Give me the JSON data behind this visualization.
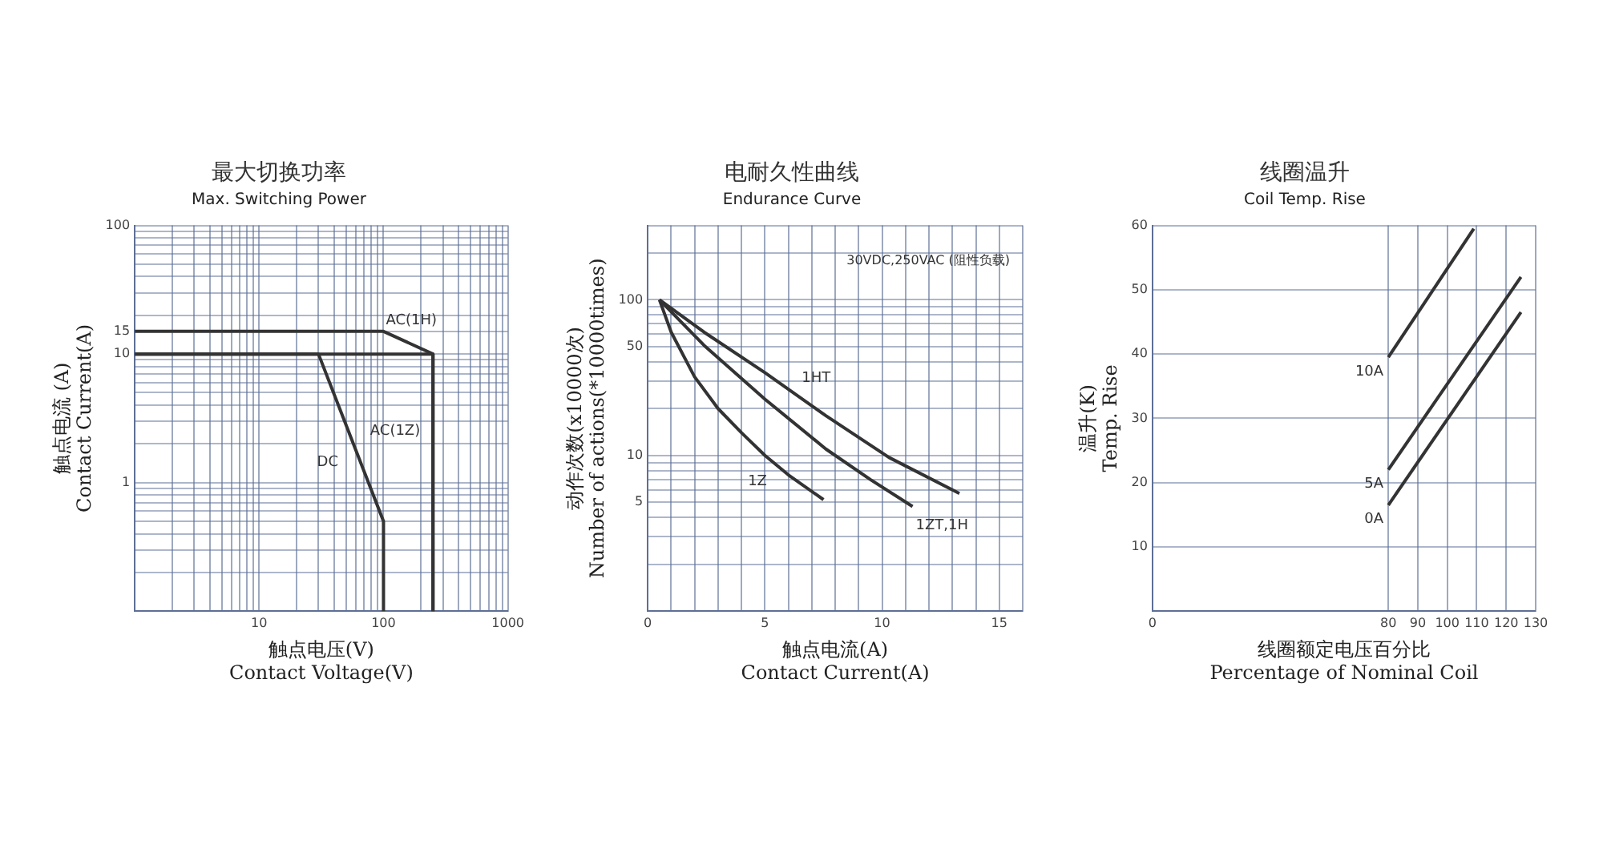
{
  "chart_data": [
    {
      "type": "line",
      "title": "最大切换功率",
      "subtitle": "Max. Switching Power",
      "xlabel": "触点电压(V)\nContact Voltage(V)",
      "ylabel": "触点电流 (A)\nContact Current(A)",
      "log": "xy",
      "grid": true,
      "xlim": [
        1,
        1000
      ],
      "xticks": [
        {
          "value": 1,
          "label": null
        },
        {
          "value": 2,
          "label": null
        },
        {
          "value": 3,
          "label": null
        },
        {
          "value": 4,
          "label": null
        },
        {
          "value": 5,
          "label": null
        },
        {
          "value": 6,
          "label": null
        },
        {
          "value": 7,
          "label": null
        },
        {
          "value": 8,
          "label": null
        },
        {
          "value": 9,
          "label": null
        },
        10,
        {
          "value": 20,
          "label": null
        },
        {
          "value": 30,
          "label": null
        },
        {
          "value": 40,
          "label": null
        },
        {
          "value": 50,
          "label": null
        },
        {
          "value": 60,
          "label": null
        },
        {
          "value": 70,
          "label": null
        },
        {
          "value": 80,
          "label": null
        },
        {
          "value": 90,
          "label": null
        },
        100,
        {
          "value": 200,
          "label": null
        },
        {
          "value": 300,
          "label": null
        },
        {
          "value": 400,
          "label": null
        },
        {
          "value": 500,
          "label": null
        },
        {
          "value": 600,
          "label": null
        },
        {
          "value": 700,
          "label": null
        },
        {
          "value": 800,
          "label": null
        },
        {
          "value": 900,
          "label": null
        },
        1000
      ],
      "ylim": [
        0.1,
        100
      ],
      "yticks": [
        {
          "value": 0.1,
          "label": null
        },
        {
          "value": 0.2,
          "label": null
        },
        {
          "value": 0.3,
          "label": null
        },
        {
          "value": 0.4,
          "label": null
        },
        {
          "value": 0.5,
          "label": null
        },
        {
          "value": 0.6,
          "label": null
        },
        {
          "value": 0.7,
          "label": null
        },
        {
          "value": 0.8,
          "label": null
        },
        {
          "value": 0.9,
          "label": null
        },
        1,
        {
          "value": 2,
          "label": null
        },
        {
          "value": 3,
          "label": null
        },
        {
          "value": 4,
          "label": null
        },
        {
          "value": 5,
          "label": null
        },
        {
          "value": 6,
          "label": null
        },
        {
          "value": 7,
          "label": null
        },
        {
          "value": 8,
          "label": null
        },
        {
          "value": 9,
          "label": null
        },
        10,
        15,
        {
          "value": 20,
          "label": null
        },
        {
          "value": 30,
          "label": null
        },
        {
          "value": 40,
          "label": null
        },
        {
          "value": 50,
          "label": null
        },
        {
          "value": 60,
          "label": null
        },
        {
          "value": 70,
          "label": null
        },
        {
          "value": 80,
          "label": null
        },
        {
          "value": 90,
          "label": null
        },
        100
      ],
      "series": [
        {
          "name": "AC(1H)",
          "color": "#333333",
          "x": [
            1,
            100,
            250,
            250
          ],
          "values": [
            15,
            15,
            10,
            0.1
          ]
        },
        {
          "name": "AC(1Z)",
          "color": "#333333",
          "x": [
            1,
            250,
            250
          ],
          "values": [
            10,
            10,
            0.1
          ]
        },
        {
          "name": "DC",
          "color": "#333333",
          "x": [
            1,
            30,
            100,
            100
          ],
          "values": [
            10,
            10,
            0.5,
            0.1
          ]
        }
      ]
    },
    {
      "type": "line",
      "title": "电耐久性曲线",
      "subtitle": "Endurance Curve",
      "xlabel": "触点电流(A)\nContact Current(A)",
      "ylabel": "动作次数(x10000次)\nNumber of actions(*10000times)",
      "log": "y",
      "grid": true,
      "annotations": [
        "30VDC,250VAC (阻性负载)"
      ],
      "xlim": [
        0,
        16
      ],
      "xticks": [
        0,
        {
          "value": 1,
          "label": null
        },
        {
          "value": 2,
          "label": null
        },
        {
          "value": 3,
          "label": null
        },
        {
          "value": 4,
          "label": null
        },
        5,
        {
          "value": 6,
          "label": null
        },
        {
          "value": 7,
          "label": null
        },
        {
          "value": 8,
          "label": null
        },
        {
          "value": 9,
          "label": null
        },
        10,
        {
          "value": 11,
          "label": null
        },
        {
          "value": 12,
          "label": null
        },
        {
          "value": 13,
          "label": null
        },
        {
          "value": 14,
          "label": null
        },
        15,
        {
          "value": 16,
          "label": null
        }
      ],
      "ylim": [
        1,
        300
      ],
      "yticks": [
        {
          "value": 1,
          "label": null
        },
        {
          "value": 2,
          "label": null
        },
        {
          "value": 3,
          "label": null
        },
        {
          "value": 4,
          "label": null
        },
        5,
        {
          "value": 6,
          "label": null
        },
        {
          "value": 7,
          "label": null
        },
        {
          "value": 8,
          "label": null
        },
        {
          "value": 9,
          "label": null
        },
        10,
        {
          "value": 20,
          "label": null
        },
        {
          "value": 30,
          "label": null
        },
        {
          "value": 40,
          "label": null
        },
        50,
        {
          "value": 60,
          "label": null
        },
        {
          "value": 70,
          "label": null
        },
        {
          "value": 80,
          "label": null
        },
        {
          "value": 90,
          "label": null
        },
        100,
        {
          "value": 200,
          "label": null
        },
        {
          "value": 300,
          "label": null
        }
      ],
      "series": [
        {
          "name": "1HT",
          "color": "#333333",
          "x": [
            0.5,
            2.4,
            5,
            7.6,
            10.3,
            13.3
          ],
          "values": [
            100,
            62,
            34,
            18,
            9.7,
            5.7
          ]
        },
        {
          "name": "1ZT,1H",
          "color": "#333333",
          "x": [
            0.5,
            2.4,
            5,
            7.6,
            9.5,
            11.3
          ],
          "values": [
            100,
            51,
            23,
            11,
            7,
            4.7
          ]
        },
        {
          "name": "1Z",
          "color": "#333333",
          "x": [
            0.5,
            1,
            2,
            3,
            4,
            5,
            6,
            7.5
          ],
          "values": [
            100,
            62,
            32,
            20,
            14,
            10,
            7.5,
            5.2
          ]
        }
      ]
    },
    {
      "type": "line",
      "title": "线圈温升",
      "subtitle": "Coil Temp. Rise",
      "xlabel": "线圈额定电压百分比\nPercentage of Nominal Coil",
      "ylabel": "温升(K)\nTemp. Rise",
      "grid": true,
      "xlim": [
        0,
        130
      ],
      "xticks": [
        0,
        80,
        90,
        100,
        110,
        120,
        130
      ],
      "ylim": [
        0,
        60
      ],
      "yticks": [
        {
          "value": 0,
          "label": null
        },
        10,
        20,
        30,
        40,
        50,
        60
      ],
      "series": [
        {
          "name": "10A",
          "color": "#333333",
          "x": [
            80,
            109
          ],
          "values": [
            39.5,
            59.5
          ]
        },
        {
          "name": "5A",
          "color": "#333333",
          "x": [
            80,
            125
          ],
          "values": [
            22,
            52
          ]
        },
        {
          "name": "0A",
          "color": "#333333",
          "x": [
            80,
            125
          ],
          "values": [
            16.5,
            46.5
          ]
        }
      ]
    }
  ]
}
